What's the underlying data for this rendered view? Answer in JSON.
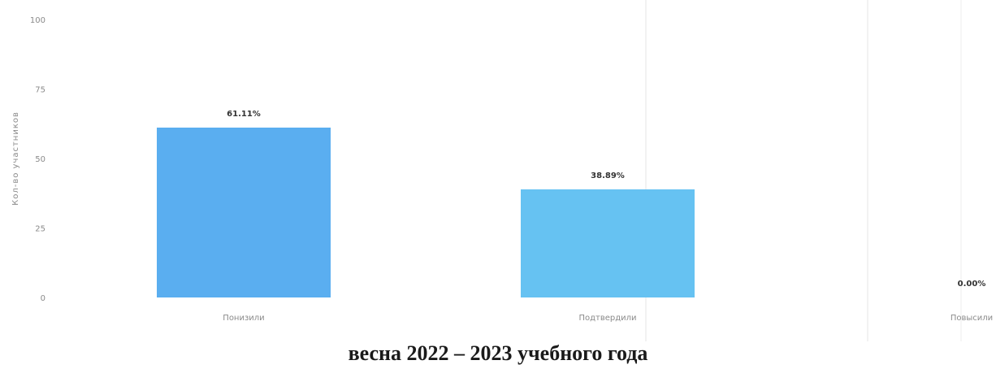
{
  "caption": "весна 2022 – 2023 учебного года",
  "chart_data": {
    "type": "bar",
    "ylabel": "Кол-во участников",
    "ylim": [
      0,
      100
    ],
    "yticks": [
      0,
      25,
      50,
      75,
      100
    ],
    "categories": [
      "Понизили",
      "Подтвердили",
      "Повысили"
    ],
    "values": [
      61.11,
      38.89,
      0
    ],
    "data_labels": [
      "61.11%",
      "38.89%",
      "0.00%"
    ],
    "grid": false,
    "colors": {
      "bars": [
        "#5aaef0",
        "#66c2f2",
        "#66c2f2"
      ],
      "axis_text": "#8a8a8a",
      "data_label": "#333333"
    }
  }
}
